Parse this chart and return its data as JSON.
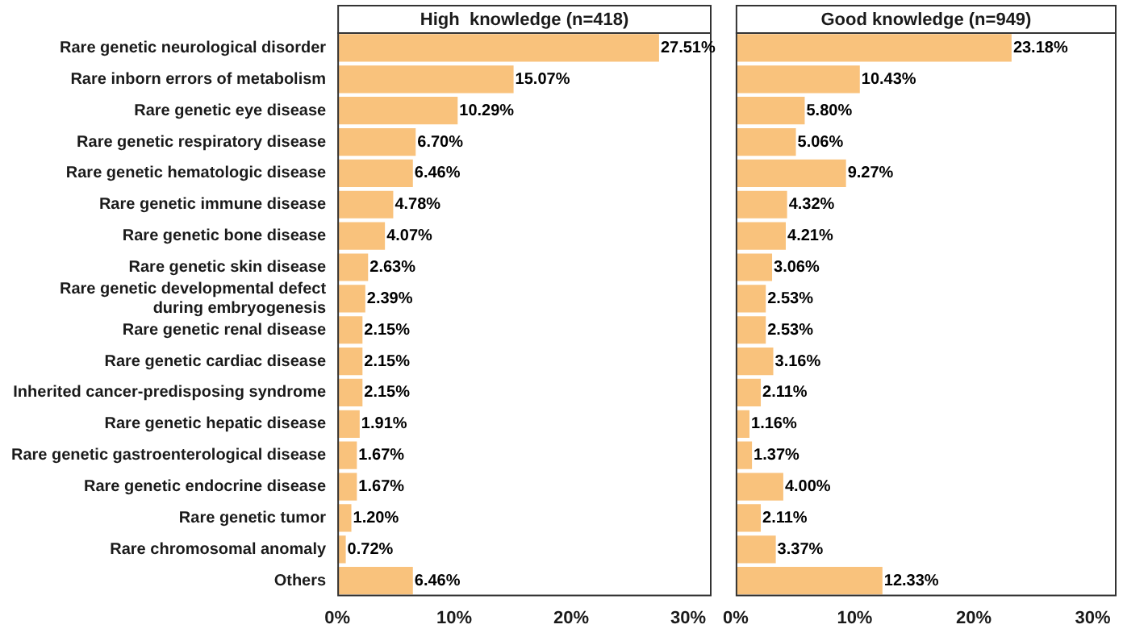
{
  "chart_data": [
    {
      "type": "bar",
      "orientation": "horizontal",
      "title": "High  knowledge (n=418)",
      "categories": [
        "Rare genetic neurological disorder",
        "Rare inborn errors of metabolism",
        "Rare genetic eye disease",
        "Rare genetic respiratory disease",
        "Rare genetic hematologic disease",
        "Rare genetic immune disease",
        "Rare genetic bone disease",
        "Rare genetic skin disease",
        "Rare genetic developmental defect during embryogenesis",
        "Rare genetic renal disease",
        "Rare genetic cardiac disease",
        "Inherited cancer-predisposing syndrome",
        "Rare genetic hepatic disease",
        "Rare genetic gastroenterological disease",
        "Rare genetic endocrine disease",
        "Rare genetic tumor",
        "Rare chromosomal anomaly",
        "Others"
      ],
      "values": [
        27.51,
        15.07,
        10.29,
        6.7,
        6.46,
        4.78,
        4.07,
        2.63,
        2.39,
        2.15,
        2.15,
        2.15,
        1.91,
        1.67,
        1.67,
        1.2,
        0.72,
        6.46
      ],
      "value_labels": [
        "27.51%",
        "15.07%",
        "10.29%",
        "6.70%",
        "6.46%",
        "4.78%",
        "4.07%",
        "2.63%",
        "2.39%",
        "2.15%",
        "2.15%",
        "2.15%",
        "1.91%",
        "1.67%",
        "1.67%",
        "1.20%",
        "0.72%",
        "6.46%"
      ],
      "color": "#f9c27c",
      "xlim": [
        0,
        32
      ],
      "xticks": [
        {
          "value": 0,
          "label": "0%"
        },
        {
          "value": 10,
          "label": "10%"
        },
        {
          "value": 20,
          "label": "20%"
        },
        {
          "value": 30,
          "label": "30%"
        }
      ],
      "grid": false,
      "legend": false
    },
    {
      "type": "bar",
      "orientation": "horizontal",
      "title": "Good knowledge (n=949)",
      "tick_labels": "x",
      "categories": [
        null,
        null,
        null,
        null,
        null,
        null,
        null,
        null,
        null,
        null,
        null,
        null,
        null,
        null,
        null,
        null,
        null,
        null
      ],
      "values": [
        23.18,
        10.43,
        5.8,
        5.06,
        9.27,
        4.32,
        4.21,
        3.06,
        2.53,
        2.53,
        3.16,
        2.11,
        1.16,
        1.37,
        4.0,
        2.11,
        3.37,
        12.33
      ],
      "value_labels": [
        "23.18%",
        "10.43%",
        "5.80%",
        "5.06%",
        "9.27%",
        "4.32%",
        "4.21%",
        "3.06%",
        "2.53%",
        "2.53%",
        "3.16%",
        "2.11%",
        "1.16%",
        "1.37%",
        "4.00%",
        "2.11%",
        "3.37%",
        "12.33%"
      ],
      "color": "#f9c27c",
      "xlim": [
        0,
        32
      ],
      "xticks": [
        {
          "value": 0,
          "label": "0%"
        },
        {
          "value": 10,
          "label": "10%"
        },
        {
          "value": 20,
          "label": "20%"
        },
        {
          "value": 30,
          "label": "30%"
        }
      ],
      "grid": false,
      "legend": false
    }
  ]
}
